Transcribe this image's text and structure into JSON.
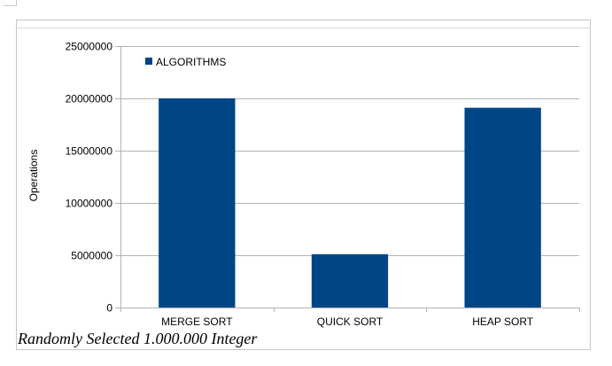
{
  "chart_data": {
    "type": "bar",
    "categories": [
      "MERGE SORT",
      "QUICK SORT",
      "HEAP SORT"
    ],
    "series": [
      {
        "name": "ALGORITHMS",
        "values": [
          20000000,
          5100000,
          19100000
        ],
        "color": "#004586"
      }
    ],
    "title": "",
    "xlabel": "",
    "ylabel": "Operations",
    "ylim": [
      0,
      25000000
    ],
    "yticks": [
      0,
      5000000,
      10000000,
      15000000,
      20000000,
      25000000
    ],
    "ytick_labels": [
      "0",
      "5000000",
      "10000000",
      "15000000",
      "20000000",
      "25000000"
    ],
    "grid": true,
    "legend_position": "top-left"
  },
  "caption": "Randomly Selected 1.000.000 Integer"
}
